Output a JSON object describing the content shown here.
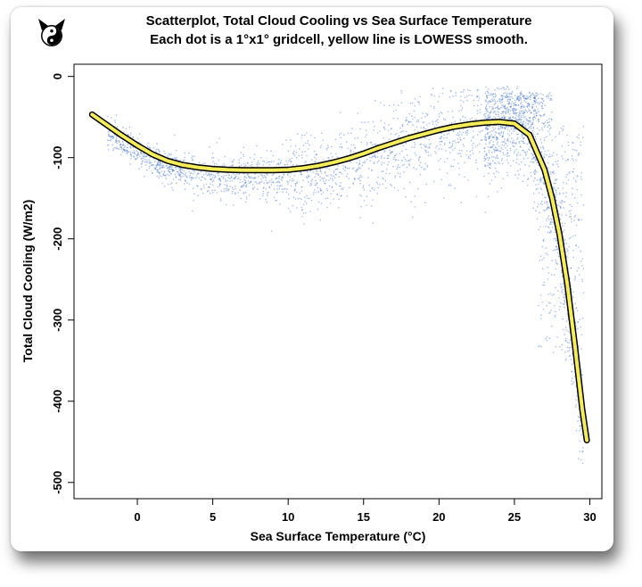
{
  "chart_data": {
    "type": "scatter",
    "title": "Scatterplot, Total Cloud Cooling vs Sea Surface Temperature",
    "subtitle": "Each dot is a 1°x1° gridcell, yellow line is LOWESS smooth.",
    "xlabel": "Sea Surface Temperature (°C)",
    "ylabel": "Total Cloud Cooling (W/m2)",
    "xlim": [
      -4.2,
      30.8
    ],
    "ylim": [
      -520,
      15
    ],
    "xticks": [
      "0",
      "5",
      "10",
      "15",
      "20",
      "25",
      "30"
    ],
    "yticks": [
      "0",
      "-100",
      "-200",
      "-300",
      "-400",
      "-500"
    ],
    "grid": false,
    "colors": {
      "points": "#3a6fd8",
      "smooth_fill": "#f5ec5a",
      "smooth_outline": "#000000"
    },
    "series": [
      {
        "x": [
          -3,
          -2,
          -1,
          0,
          1,
          2,
          3,
          4,
          5,
          6,
          7,
          8,
          9,
          10,
          11,
          12,
          13,
          14,
          15,
          16,
          17,
          18,
          19,
          20,
          21,
          22,
          23,
          24,
          25,
          26,
          27,
          27.5,
          28,
          28.5,
          29,
          29.5,
          29.8
        ],
        "y": [
          -47,
          -60,
          -73,
          -85,
          -96,
          -104,
          -109,
          -112,
          -114,
          -115,
          -115.5,
          -115.5,
          -115.5,
          -115,
          -113,
          -110,
          -106,
          -101,
          -95,
          -88,
          -82,
          -76,
          -71,
          -66,
          -62,
          -59,
          -57,
          -56,
          -58,
          -72,
          -115,
          -150,
          -195,
          -255,
          -330,
          -410,
          -448
        ]
      }
    ]
  },
  "logo": {
    "name": "yin-yang-cat-logo"
  }
}
